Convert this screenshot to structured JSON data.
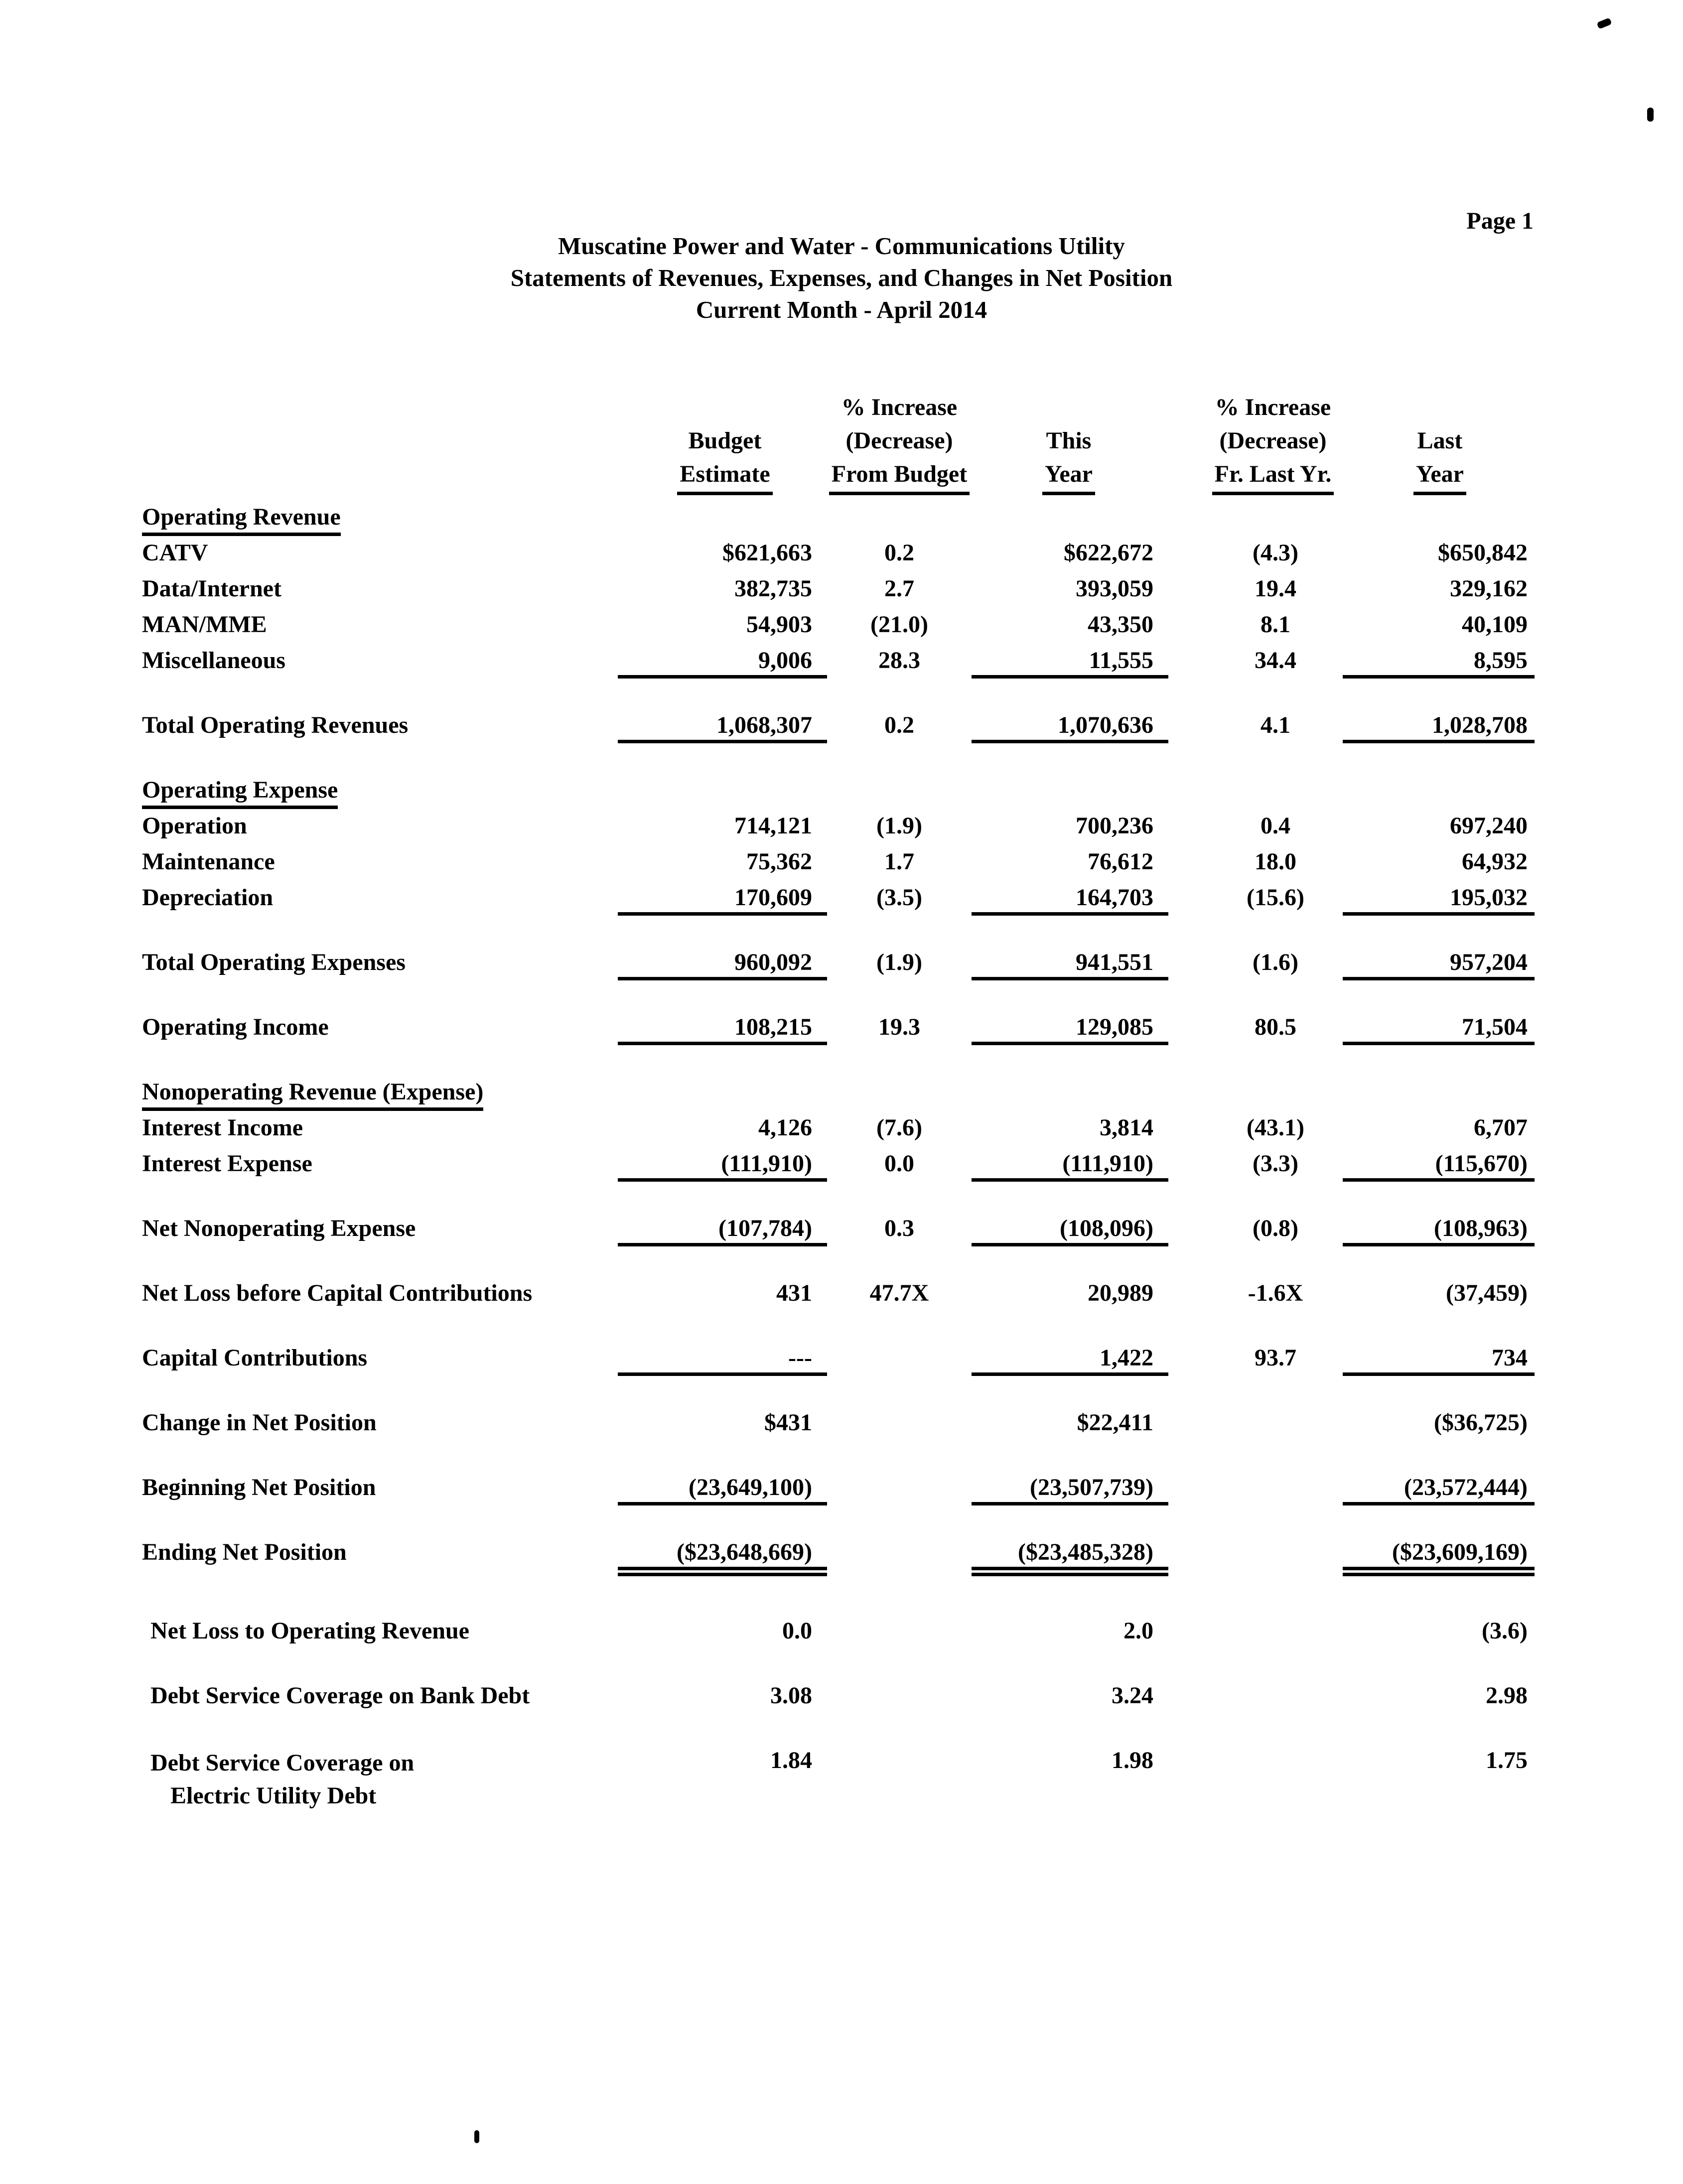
{
  "page": {
    "page_number_label": "Page 1"
  },
  "header": {
    "title_line1": "Muscatine Power and Water - Communications Utility",
    "title_line2": "Statements of Revenues, Expenses, and Changes in Net Position",
    "title_line3": "Current Month - April 2014"
  },
  "table": {
    "columns": {
      "c1": [
        "Budget",
        "Estimate"
      ],
      "c2": [
        "% Increase",
        "(Decrease)",
        "From Budget"
      ],
      "c3": [
        "This",
        "Year"
      ],
      "c4": [
        "% Increase",
        "(Decrease)",
        "Fr. Last Yr."
      ],
      "c5": [
        "Last",
        "Year"
      ]
    },
    "rows": [
      {
        "type": "section",
        "label": "Operating Revenue"
      },
      {
        "type": "detail",
        "label": "CATV",
        "values": [
          "$621,663",
          "0.2",
          "$622,672",
          "(4.3)",
          "$650,842"
        ]
      },
      {
        "type": "detail",
        "label": "Data/Internet",
        "values": [
          "382,735",
          "2.7",
          "393,059",
          "19.4",
          "329,162"
        ]
      },
      {
        "type": "detail",
        "label": "MAN/MME",
        "values": [
          "54,903",
          "(21.0)",
          "43,350",
          "8.1",
          "40,109"
        ]
      },
      {
        "type": "detail",
        "rule": "single",
        "label": "Miscellaneous",
        "values": [
          "9,006",
          "28.3",
          "11,555",
          "34.4",
          "8,595"
        ]
      },
      {
        "type": "total",
        "rule": "single",
        "label": "Total Operating Revenues",
        "values": [
          "1,068,307",
          "0.2",
          "1,070,636",
          "4.1",
          "1,028,708"
        ]
      },
      {
        "type": "section",
        "label": "Operating Expense"
      },
      {
        "type": "detail",
        "label": "Operation",
        "values": [
          "714,121",
          "(1.9)",
          "700,236",
          "0.4",
          "697,240"
        ]
      },
      {
        "type": "detail",
        "label": "Maintenance",
        "values": [
          "75,362",
          "1.7",
          "76,612",
          "18.0",
          "64,932"
        ]
      },
      {
        "type": "detail",
        "rule": "single",
        "label": "Depreciation",
        "values": [
          "170,609",
          "(3.5)",
          "164,703",
          "(15.6)",
          "195,032"
        ]
      },
      {
        "type": "total",
        "rule": "single",
        "label": "Total Operating Expenses",
        "values": [
          "960,092",
          "(1.9)",
          "941,551",
          "(1.6)",
          "957,204"
        ]
      },
      {
        "type": "total",
        "rule": "single",
        "label": "Operating Income",
        "values": [
          "108,215",
          "19.3",
          "129,085",
          "80.5",
          "71,504"
        ]
      },
      {
        "type": "section",
        "label": "Nonoperating Revenue (Expense)"
      },
      {
        "type": "detail",
        "label": "Interest Income",
        "values": [
          "4,126",
          "(7.6)",
          "3,814",
          "(43.1)",
          "6,707"
        ]
      },
      {
        "type": "detail",
        "rule": "single",
        "label": "Interest Expense",
        "values": [
          "(111,910)",
          "0.0",
          "(111,910)",
          "(3.3)",
          "(115,670)"
        ]
      },
      {
        "type": "total",
        "rule": "single",
        "label": "Net Nonoperating Expense",
        "values": [
          "(107,784)",
          "0.3",
          "(108,096)",
          "(0.8)",
          "(108,963)"
        ]
      },
      {
        "type": "strong",
        "label": "Net Loss before Capital Contributions",
        "values": [
          "431",
          "47.7X",
          "20,989",
          "-1.6X",
          "(37,459)"
        ]
      },
      {
        "type": "total",
        "rule": "single",
        "label": "Capital Contributions",
        "values": [
          "---",
          "",
          "1,422",
          "93.7",
          "734"
        ]
      },
      {
        "type": "strong",
        "label": "Change in Net Position",
        "values": [
          "$431",
          "",
          "$22,411",
          "",
          "($36,725)"
        ]
      },
      {
        "type": "strong",
        "rule": "single",
        "label": "Beginning Net Position",
        "values": [
          "(23,649,100)",
          "",
          "(23,507,739)",
          "",
          "(23,572,444)"
        ]
      },
      {
        "type": "strong",
        "rule": "double",
        "label": "Ending Net Position",
        "values": [
          "($23,648,669)",
          "",
          "($23,485,328)",
          "",
          "($23,609,169)"
        ]
      },
      {
        "type": "ratio",
        "label": "Net Loss to Operating Revenue",
        "values": [
          "0.0",
          "",
          "2.0",
          "",
          "(3.6)"
        ]
      },
      {
        "type": "ratio",
        "label": "Debt Service Coverage on Bank Debt",
        "values": [
          "3.08",
          "",
          "3.24",
          "",
          "2.98"
        ]
      },
      {
        "type": "ratio",
        "label": "Debt Service Coverage on",
        "label2": "Electric Utility Debt",
        "values": [
          "1.84",
          "",
          "1.98",
          "",
          "1.75"
        ]
      }
    ]
  }
}
